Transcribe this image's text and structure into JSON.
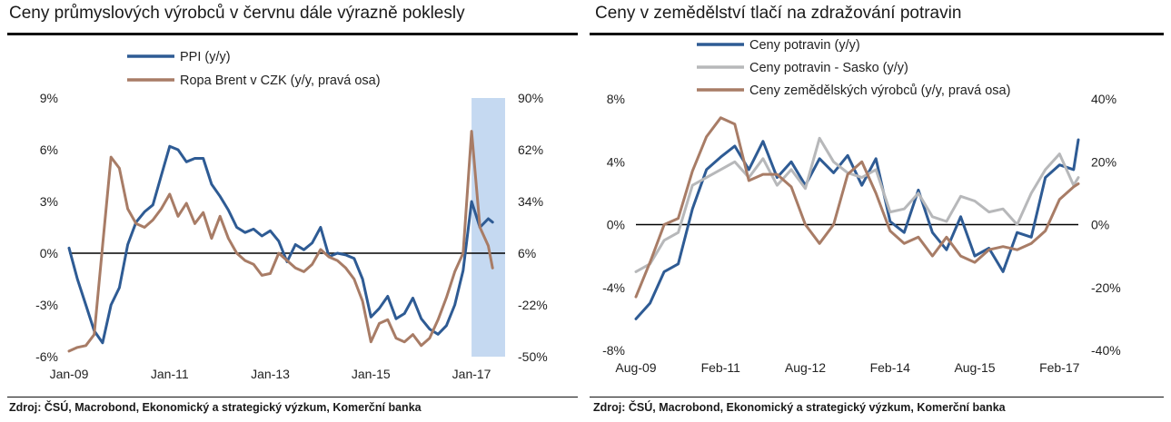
{
  "left": {
    "title": "Ceny průmyslových výrobců v červnu dále výrazně poklesly",
    "source": "Zdroj: ČSÚ, Macrobond, Ekonomický a strategický výzkum, Komerční banka"
  },
  "right": {
    "title": "Ceny v zemědělství tlačí na zdražování potravin",
    "source": "Zdroj: ČSÚ, Macrobond, Ekonomický a strategický výzkum, Komerční banka"
  },
  "chart_data": [
    {
      "type": "line",
      "title": "Ceny průmyslových výrobců v červnu dále výrazně poklesly",
      "x_ticks": [
        "Jan-09",
        "Jan-11",
        "Jan-13",
        "Jan-15",
        "Jan-17"
      ],
      "x_range": [
        "2009-01",
        "2017-09"
      ],
      "y_left": {
        "ticks": [
          "-6%",
          "-3%",
          "0%",
          "3%",
          "6%",
          "9%"
        ],
        "range": [
          -6,
          9
        ]
      },
      "y_right": {
        "ticks": [
          "-50%",
          "-22%",
          "6%",
          "34%",
          "62%",
          "90%"
        ],
        "range": [
          -50,
          90
        ]
      },
      "zero_line": true,
      "legend": "top-left",
      "shaded_region": {
        "from": "2017-01",
        "to": "2017-06",
        "color": "#c5d9f1"
      },
      "series": [
        {
          "name": "PPI (y/y)",
          "axis": "left",
          "color": "#2e5b94",
          "x": [
            "2009-01",
            "2009-03",
            "2009-05",
            "2009-07",
            "2009-09",
            "2009-11",
            "2010-01",
            "2010-03",
            "2010-05",
            "2010-07",
            "2010-09",
            "2010-11",
            "2011-01",
            "2011-03",
            "2011-05",
            "2011-07",
            "2011-09",
            "2011-11",
            "2012-01",
            "2012-03",
            "2012-05",
            "2012-07",
            "2012-09",
            "2012-11",
            "2013-01",
            "2013-03",
            "2013-05",
            "2013-07",
            "2013-09",
            "2013-11",
            "2014-01",
            "2014-03",
            "2014-05",
            "2014-07",
            "2014-09",
            "2014-11",
            "2015-01",
            "2015-03",
            "2015-05",
            "2015-07",
            "2015-09",
            "2015-11",
            "2016-01",
            "2016-03",
            "2016-05",
            "2016-07",
            "2016-09",
            "2016-11",
            "2017-01",
            "2017-03",
            "2017-05",
            "2017-06"
          ],
          "values": [
            0.3,
            -1.5,
            -3.0,
            -4.5,
            -5.2,
            -3.0,
            -2.0,
            0.5,
            1.8,
            2.4,
            2.8,
            4.5,
            6.2,
            6.0,
            5.3,
            5.5,
            5.5,
            4.0,
            3.3,
            2.5,
            1.5,
            1.2,
            1.4,
            1.0,
            1.3,
            0.7,
            -0.5,
            0.5,
            0.2,
            0.6,
            1.5,
            -0.2,
            0.0,
            -0.1,
            -0.3,
            -1.5,
            -3.7,
            -3.2,
            -2.5,
            -3.8,
            -3.5,
            -2.6,
            -3.8,
            -4.4,
            -4.7,
            -4.2,
            -3.0,
            -1.0,
            3.0,
            1.5,
            2.0,
            1.8
          ]
        },
        {
          "name": "Ropa Brent v CZK (y/y, pravá osa)",
          "axis": "right",
          "color": "#a87c66",
          "x": [
            "2009-01",
            "2009-03",
            "2009-05",
            "2009-07",
            "2009-09",
            "2009-11",
            "2010-01",
            "2010-03",
            "2010-05",
            "2010-07",
            "2010-09",
            "2010-11",
            "2011-01",
            "2011-03",
            "2011-05",
            "2011-07",
            "2011-09",
            "2011-11",
            "2012-01",
            "2012-03",
            "2012-05",
            "2012-07",
            "2012-09",
            "2012-11",
            "2013-01",
            "2013-03",
            "2013-05",
            "2013-07",
            "2013-09",
            "2013-11",
            "2014-01",
            "2014-03",
            "2014-05",
            "2014-07",
            "2014-09",
            "2014-11",
            "2015-01",
            "2015-03",
            "2015-05",
            "2015-07",
            "2015-09",
            "2015-11",
            "2016-01",
            "2016-03",
            "2016-05",
            "2016-07",
            "2016-09",
            "2016-11",
            "2017-01",
            "2017-03",
            "2017-05",
            "2017-06"
          ],
          "values": [
            -47,
            -45,
            -44,
            -38,
            10,
            58,
            52,
            30,
            22,
            20,
            24,
            30,
            38,
            26,
            33,
            22,
            28,
            14,
            26,
            14,
            6,
            2,
            0,
            -6,
            -5,
            6,
            2,
            -2,
            -4,
            0,
            8,
            4,
            2,
            -2,
            -8,
            -20,
            -42,
            -32,
            -30,
            -40,
            -42,
            -38,
            -44,
            -40,
            -30,
            -18,
            -4,
            6,
            72,
            20,
            10,
            -2
          ]
        }
      ]
    },
    {
      "type": "line",
      "title": "Ceny v zemědělství tlačí na zdražování potravin",
      "x_ticks": [
        "Aug-09",
        "Feb-11",
        "Aug-12",
        "Feb-14",
        "Aug-15",
        "Feb-17"
      ],
      "x_range": [
        "2009-08",
        "2017-06"
      ],
      "y_left": {
        "ticks": [
          "-8%",
          "-4%",
          "0%",
          "4%",
          "8%"
        ],
        "range": [
          -8,
          8
        ]
      },
      "y_right": {
        "ticks": [
          "-40%",
          "-20%",
          "0%",
          "20%",
          "40%"
        ],
        "range": [
          -40,
          40
        ]
      },
      "zero_line": true,
      "legend": "top-left",
      "series": [
        {
          "name": "Ceny potravin (y/y)",
          "axis": "left",
          "color": "#2e5b94",
          "x": [
            "2009-08",
            "2009-11",
            "2010-02",
            "2010-05",
            "2010-08",
            "2010-11",
            "2011-02",
            "2011-05",
            "2011-08",
            "2011-11",
            "2012-02",
            "2012-05",
            "2012-08",
            "2012-11",
            "2013-02",
            "2013-05",
            "2013-08",
            "2013-11",
            "2014-02",
            "2014-05",
            "2014-08",
            "2014-11",
            "2015-02",
            "2015-05",
            "2015-08",
            "2015-11",
            "2016-02",
            "2016-05",
            "2016-08",
            "2016-11",
            "2017-02",
            "2017-05",
            "2017-06"
          ],
          "values": [
            -6.0,
            -5.0,
            -3.0,
            -2.5,
            1.0,
            3.5,
            4.3,
            5.0,
            3.5,
            5.3,
            3.0,
            4.0,
            2.5,
            4.2,
            3.3,
            4.4,
            2.5,
            4.2,
            0.2,
            -0.5,
            2.2,
            -0.5,
            -1.6,
            0.5,
            -2.0,
            -1.5,
            -3.0,
            -0.5,
            -0.8,
            3.0,
            3.8,
            3.5,
            5.4
          ]
        },
        {
          "name": "Ceny potravin - Sasko (y/y)",
          "axis": "left",
          "color": "#b7b8ba",
          "x": [
            "2009-08",
            "2009-11",
            "2010-02",
            "2010-05",
            "2010-08",
            "2010-11",
            "2011-02",
            "2011-05",
            "2011-08",
            "2011-11",
            "2012-02",
            "2012-05",
            "2012-08",
            "2012-11",
            "2013-02",
            "2013-05",
            "2013-08",
            "2013-11",
            "2014-02",
            "2014-05",
            "2014-08",
            "2014-11",
            "2015-02",
            "2015-05",
            "2015-08",
            "2015-11",
            "2016-02",
            "2016-05",
            "2016-08",
            "2016-11",
            "2017-02",
            "2017-05",
            "2017-06"
          ],
          "values": [
            -3.0,
            -2.5,
            -1.0,
            -0.5,
            2.5,
            3.0,
            3.5,
            4.0,
            3.0,
            4.2,
            2.5,
            3.5,
            2.3,
            5.5,
            4.0,
            3.3,
            3.0,
            3.5,
            0.8,
            1.0,
            2.0,
            0.5,
            0.2,
            1.8,
            1.5,
            0.8,
            1.0,
            0.0,
            2.0,
            3.5,
            4.5,
            2.5,
            3.0
          ]
        },
        {
          "name": "Ceny zemědělských výrobců (y/y, pravá osa)",
          "axis": "right",
          "color": "#a87c66",
          "x": [
            "2009-08",
            "2009-11",
            "2010-02",
            "2010-05",
            "2010-08",
            "2010-11",
            "2011-02",
            "2011-05",
            "2011-08",
            "2011-11",
            "2012-02",
            "2012-05",
            "2012-08",
            "2012-11",
            "2013-02",
            "2013-05",
            "2013-08",
            "2013-11",
            "2014-02",
            "2014-05",
            "2014-08",
            "2014-11",
            "2015-02",
            "2015-05",
            "2015-08",
            "2015-11",
            "2016-02",
            "2016-05",
            "2016-08",
            "2016-11",
            "2017-02",
            "2017-05",
            "2017-06"
          ],
          "values": [
            -23,
            -12,
            0,
            2,
            17,
            28,
            34,
            32,
            14,
            16,
            16,
            12,
            0,
            -6,
            0,
            16,
            20,
            10,
            -2,
            -6,
            -4,
            -10,
            -4,
            -10,
            -12,
            -8,
            -7,
            -8,
            -6,
            -2,
            8,
            12,
            13
          ]
        }
      ]
    }
  ]
}
